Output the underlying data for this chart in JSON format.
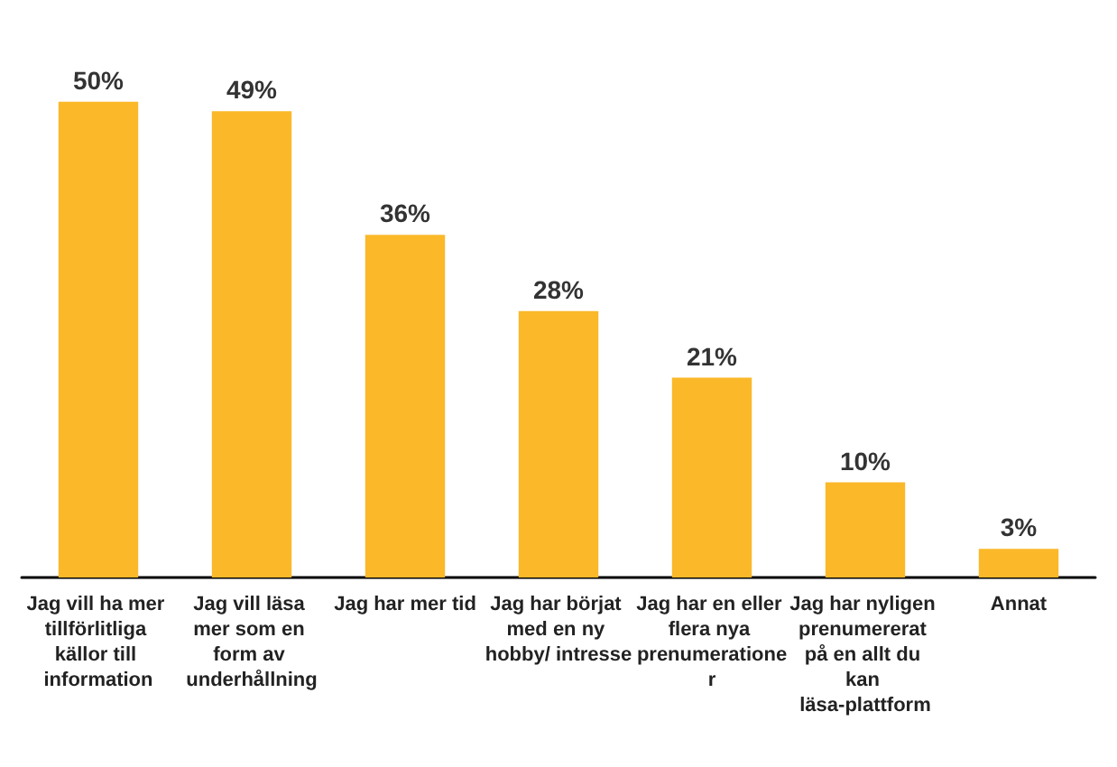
{
  "chart_data": {
    "type": "bar",
    "categories": [
      "Jag vill ha mer tillförlitliga källor till information",
      "Jag vill läsa mer som en form av underhållning",
      "Jag har mer tid",
      "Jag har börjat med en ny hobby/ intresse",
      "Jag har en eller flera nya prenumerationer",
      "Jag har nyligen prenumererat på en allt du kan läsa-plattform",
      "Annat"
    ],
    "values": [
      50,
      49,
      36,
      28,
      21,
      10,
      3
    ],
    "value_labels": [
      "50%",
      "49%",
      "36%",
      "28%",
      "21%",
      "10%",
      "3%"
    ],
    "color": "#fbb829"
  }
}
